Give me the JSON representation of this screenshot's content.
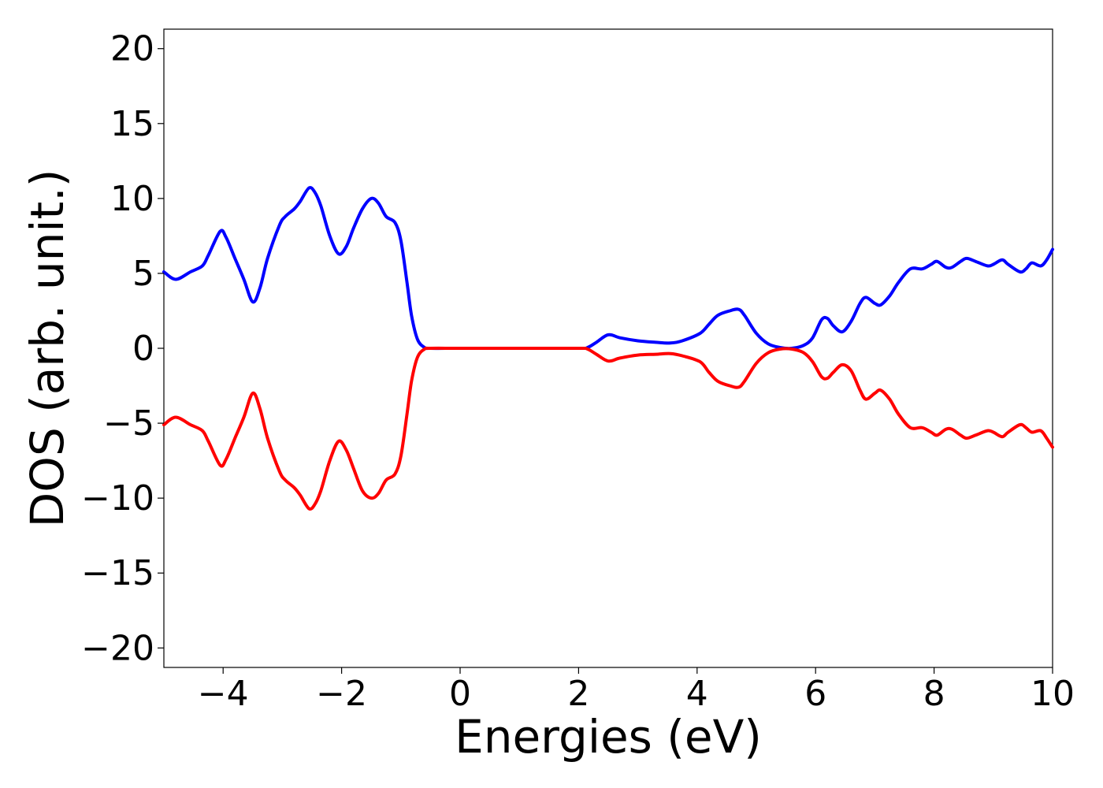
{
  "chart_data": {
    "type": "line",
    "title": "",
    "xlabel": "Energies (eV)",
    "ylabel": "DOS (arb. unit.)",
    "xlim": [
      -5,
      10
    ],
    "ylim": [
      -21.3,
      21.3
    ],
    "grid": false,
    "legend": "none",
    "xticks": [
      -4,
      -2,
      0,
      2,
      4,
      6,
      8,
      10
    ],
    "xtick_labels": [
      "−4",
      "−2",
      "0",
      "2",
      "4",
      "6",
      "8",
      "10"
    ],
    "yticks": [
      20,
      15,
      10,
      5,
      0,
      -5,
      -10,
      -15,
      -20
    ],
    "ytick_labels": [
      "20",
      "15",
      "10",
      "5",
      "0",
      "−5",
      "−10",
      "−15",
      "−20"
    ],
    "series": [
      {
        "color": "#0000ff",
        "points": [
          [
            -5.0,
            5.1
          ],
          [
            -4.8,
            4.6
          ],
          [
            -4.55,
            5.1
          ],
          [
            -4.35,
            5.5
          ],
          [
            -4.25,
            6.2
          ],
          [
            -4.05,
            7.8
          ],
          [
            -3.95,
            7.4
          ],
          [
            -3.8,
            6.0
          ],
          [
            -3.65,
            4.6
          ],
          [
            -3.5,
            3.1
          ],
          [
            -3.38,
            4.0
          ],
          [
            -3.25,
            6.0
          ],
          [
            -3.05,
            8.2
          ],
          [
            -2.95,
            8.8
          ],
          [
            -2.8,
            9.3
          ],
          [
            -2.7,
            9.8
          ],
          [
            -2.55,
            10.7
          ],
          [
            -2.45,
            10.4
          ],
          [
            -2.35,
            9.5
          ],
          [
            -2.2,
            7.5
          ],
          [
            -2.05,
            6.3
          ],
          [
            -1.92,
            6.8
          ],
          [
            -1.8,
            8.0
          ],
          [
            -1.65,
            9.3
          ],
          [
            -1.5,
            10.0
          ],
          [
            -1.38,
            9.7
          ],
          [
            -1.25,
            8.8
          ],
          [
            -1.1,
            8.4
          ],
          [
            -1.0,
            7.2
          ],
          [
            -0.9,
            4.5
          ],
          [
            -0.82,
            2.2
          ],
          [
            -0.72,
            0.6
          ],
          [
            -0.6,
            0.05
          ],
          [
            -0.5,
            0.0
          ],
          [
            0.0,
            0.0
          ],
          [
            1.0,
            0.0
          ],
          [
            2.0,
            0.0
          ],
          [
            2.15,
            0.05
          ],
          [
            2.3,
            0.4
          ],
          [
            2.5,
            0.9
          ],
          [
            2.7,
            0.7
          ],
          [
            3.0,
            0.5
          ],
          [
            3.3,
            0.4
          ],
          [
            3.55,
            0.35
          ],
          [
            3.75,
            0.5
          ],
          [
            4.05,
            1.0
          ],
          [
            4.2,
            1.6
          ],
          [
            4.35,
            2.2
          ],
          [
            4.55,
            2.5
          ],
          [
            4.7,
            2.6
          ],
          [
            4.8,
            2.2
          ],
          [
            5.0,
            1.0
          ],
          [
            5.2,
            0.3
          ],
          [
            5.4,
            0.05
          ],
          [
            5.6,
            0.0
          ],
          [
            5.8,
            0.2
          ],
          [
            5.95,
            0.7
          ],
          [
            6.1,
            1.9
          ],
          [
            6.2,
            2.0
          ],
          [
            6.3,
            1.5
          ],
          [
            6.45,
            1.1
          ],
          [
            6.6,
            1.8
          ],
          [
            6.75,
            3.0
          ],
          [
            6.85,
            3.4
          ],
          [
            7.0,
            3.0
          ],
          [
            7.1,
            2.9
          ],
          [
            7.25,
            3.5
          ],
          [
            7.4,
            4.4
          ],
          [
            7.6,
            5.3
          ],
          [
            7.8,
            5.3
          ],
          [
            7.95,
            5.6
          ],
          [
            8.05,
            5.8
          ],
          [
            8.2,
            5.4
          ],
          [
            8.3,
            5.4
          ],
          [
            8.45,
            5.8
          ],
          [
            8.55,
            6.0
          ],
          [
            8.7,
            5.8
          ],
          [
            8.9,
            5.5
          ],
          [
            9.0,
            5.6
          ],
          [
            9.15,
            5.9
          ],
          [
            9.25,
            5.6
          ],
          [
            9.45,
            5.1
          ],
          [
            9.55,
            5.3
          ],
          [
            9.65,
            5.7
          ],
          [
            9.8,
            5.5
          ],
          [
            9.9,
            5.9
          ],
          [
            10.0,
            6.6
          ]
        ]
      },
      {
        "color": "#ff0000",
        "points": [
          [
            -5.0,
            -5.1
          ],
          [
            -4.8,
            -4.6
          ],
          [
            -4.55,
            -5.1
          ],
          [
            -4.35,
            -5.5
          ],
          [
            -4.25,
            -6.2
          ],
          [
            -4.05,
            -7.8
          ],
          [
            -3.95,
            -7.4
          ],
          [
            -3.8,
            -6.0
          ],
          [
            -3.65,
            -4.6
          ],
          [
            -3.5,
            -3.0
          ],
          [
            -3.38,
            -4.0
          ],
          [
            -3.25,
            -6.0
          ],
          [
            -3.05,
            -8.2
          ],
          [
            -2.95,
            -8.8
          ],
          [
            -2.8,
            -9.3
          ],
          [
            -2.7,
            -9.8
          ],
          [
            -2.55,
            -10.7
          ],
          [
            -2.45,
            -10.4
          ],
          [
            -2.35,
            -9.5
          ],
          [
            -2.2,
            -7.5
          ],
          [
            -2.05,
            -6.2
          ],
          [
            -1.92,
            -6.8
          ],
          [
            -1.8,
            -8.0
          ],
          [
            -1.65,
            -9.5
          ],
          [
            -1.5,
            -10.0
          ],
          [
            -1.38,
            -9.7
          ],
          [
            -1.25,
            -8.8
          ],
          [
            -1.1,
            -8.4
          ],
          [
            -1.0,
            -7.2
          ],
          [
            -0.9,
            -4.5
          ],
          [
            -0.82,
            -2.2
          ],
          [
            -0.72,
            -0.6
          ],
          [
            -0.6,
            -0.05
          ],
          [
            -0.5,
            0.0
          ],
          [
            0.0,
            0.0
          ],
          [
            1.0,
            0.0
          ],
          [
            2.0,
            0.0
          ],
          [
            2.15,
            -0.05
          ],
          [
            2.3,
            -0.4
          ],
          [
            2.5,
            -0.85
          ],
          [
            2.7,
            -0.65
          ],
          [
            3.0,
            -0.45
          ],
          [
            3.3,
            -0.4
          ],
          [
            3.55,
            -0.35
          ],
          [
            3.75,
            -0.5
          ],
          [
            4.05,
            -0.9
          ],
          [
            4.2,
            -1.6
          ],
          [
            4.35,
            -2.2
          ],
          [
            4.55,
            -2.5
          ],
          [
            4.7,
            -2.6
          ],
          [
            4.8,
            -2.2
          ],
          [
            5.0,
            -1.0
          ],
          [
            5.2,
            -0.3
          ],
          [
            5.4,
            -0.05
          ],
          [
            5.6,
            -0.05
          ],
          [
            5.8,
            -0.3
          ],
          [
            5.95,
            -0.9
          ],
          [
            6.1,
            -1.9
          ],
          [
            6.2,
            -2.0
          ],
          [
            6.3,
            -1.6
          ],
          [
            6.45,
            -1.1
          ],
          [
            6.6,
            -1.5
          ],
          [
            6.75,
            -2.8
          ],
          [
            6.85,
            -3.4
          ],
          [
            7.0,
            -3.0
          ],
          [
            7.1,
            -2.8
          ],
          [
            7.25,
            -3.4
          ],
          [
            7.4,
            -4.4
          ],
          [
            7.6,
            -5.3
          ],
          [
            7.8,
            -5.3
          ],
          [
            7.95,
            -5.6
          ],
          [
            8.05,
            -5.8
          ],
          [
            8.2,
            -5.4
          ],
          [
            8.3,
            -5.4
          ],
          [
            8.45,
            -5.8
          ],
          [
            8.55,
            -6.0
          ],
          [
            8.7,
            -5.8
          ],
          [
            8.9,
            -5.5
          ],
          [
            9.0,
            -5.6
          ],
          [
            9.15,
            -5.9
          ],
          [
            9.25,
            -5.6
          ],
          [
            9.45,
            -5.1
          ],
          [
            9.55,
            -5.3
          ],
          [
            9.65,
            -5.6
          ],
          [
            9.8,
            -5.5
          ],
          [
            9.9,
            -6.0
          ],
          [
            10.0,
            -6.6
          ]
        ]
      }
    ]
  }
}
